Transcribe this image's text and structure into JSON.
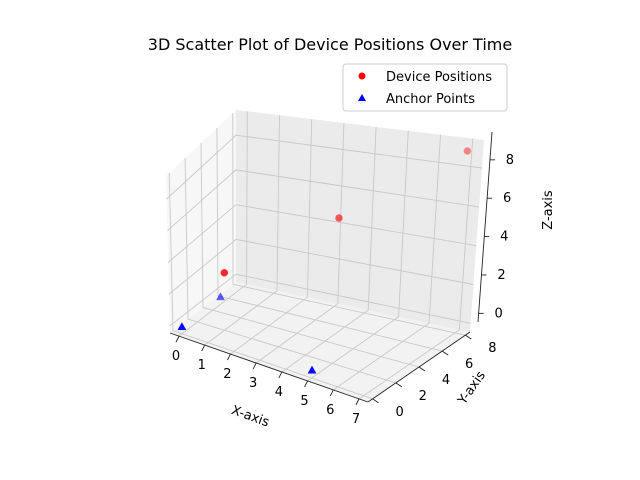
{
  "chart_data": {
    "type": "scatter3d",
    "title": "3D Scatter Plot of Device Positions Over Time",
    "xlabel": "X-axis",
    "ylabel": "Y-axis",
    "zlabel": "Z-axis",
    "xlim": [
      -0.35,
      7.35
    ],
    "ylim": [
      -0.4,
      8.4
    ],
    "zlim": [
      -0.45,
      9.45
    ],
    "xticks": [
      "0",
      "1",
      "2",
      "3",
      "4",
      "5",
      "6",
      "7"
    ],
    "yticks": [
      "0",
      "2",
      "4",
      "6",
      "8"
    ],
    "zticks": [
      "0",
      "2",
      "4",
      "6",
      "8"
    ],
    "grid": true,
    "legend_position": "top-right",
    "series": [
      {
        "name": "Device Positions",
        "marker": "circle",
        "color": "#ff0000",
        "points": [
          {
            "x": 1,
            "y": 2,
            "z": 3
          },
          {
            "x": 4,
            "y": 5,
            "z": 6
          },
          {
            "x": 7,
            "y": 8,
            "z": 9
          }
        ]
      },
      {
        "name": "Anchor Points",
        "marker": "triangle",
        "color": "#0000ff",
        "points": [
          {
            "x": 0,
            "y": 0,
            "z": 0
          },
          {
            "x": 0,
            "y": 5,
            "z": 0
          },
          {
            "x": 5,
            "y": 0,
            "z": 0
          }
        ]
      }
    ]
  }
}
